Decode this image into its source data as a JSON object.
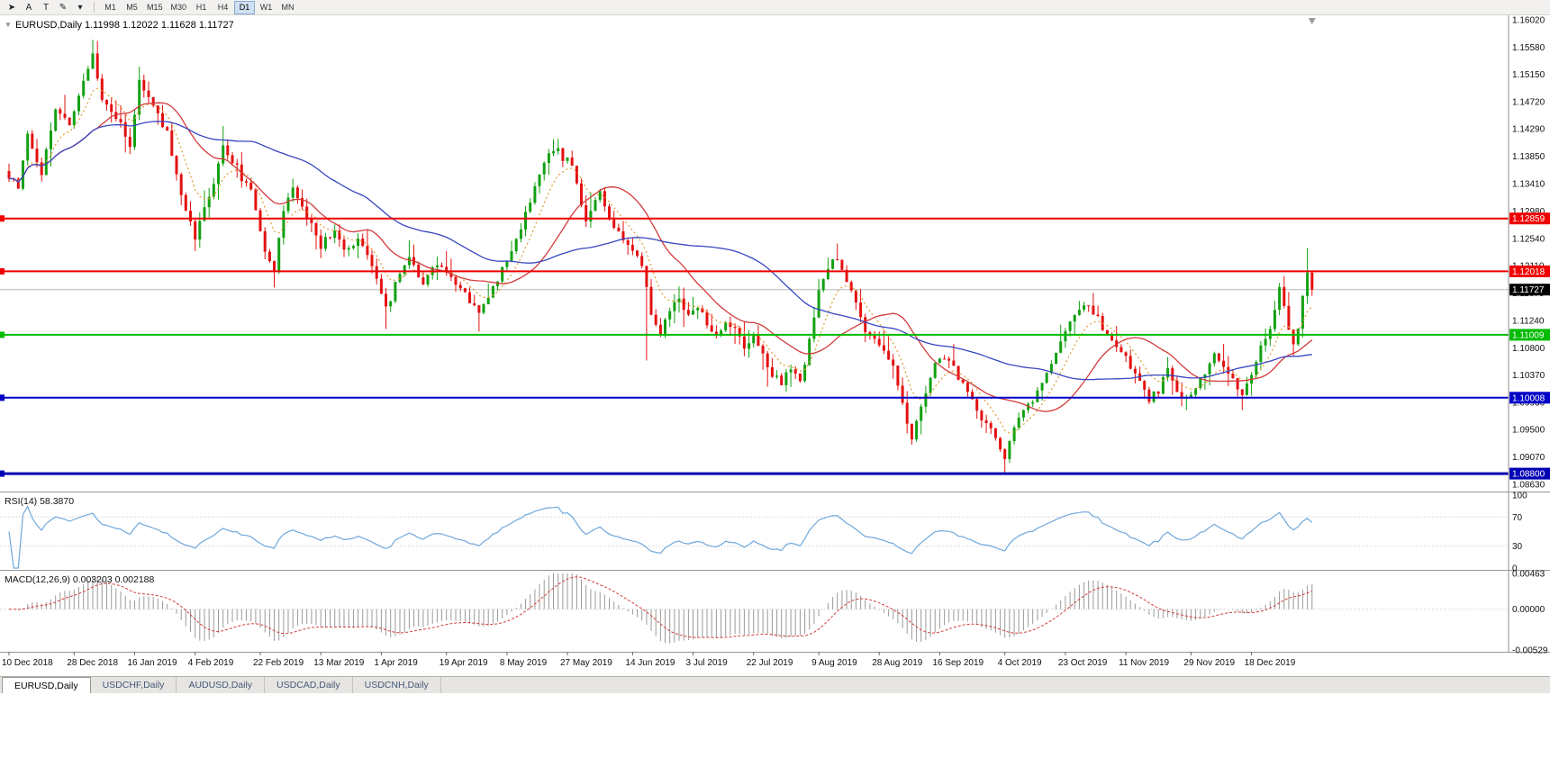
{
  "toolbar": {
    "tools": [
      {
        "id": "cursor",
        "glyph": "➤"
      },
      {
        "id": "text",
        "glyph": "A"
      },
      {
        "id": "text-label",
        "glyph": "T"
      },
      {
        "id": "draw",
        "glyph": "✎"
      },
      {
        "id": "draw-dropdown",
        "glyph": "▾"
      }
    ],
    "timeframes": [
      "M1",
      "M5",
      "M15",
      "M30",
      "H1",
      "H4",
      "D1",
      "W1",
      "MN"
    ],
    "active_timeframe": "D1"
  },
  "chart_header": {
    "symbol": "EURUSD,Daily",
    "collapse_icon": "▼",
    "open": "1.11998",
    "high": "1.12022",
    "low": "1.11628",
    "close": "1.11727"
  },
  "rsi_panel": {
    "label": "RSI(14)",
    "value": "58.3870",
    "period": 14,
    "axis_labels": [
      "100",
      "70",
      "30",
      "0"
    ],
    "levels": [
      100,
      70,
      30,
      0
    ],
    "dotted_levels": [
      70,
      30
    ]
  },
  "macd_panel": {
    "label": "MACD(12,26,9)",
    "value": "0.003203 0.002188",
    "axis_labels": [
      "0.00463",
      "0.00000",
      "-0.00529"
    ],
    "axis_values": [
      0.00463,
      0,
      -0.00529
    ]
  },
  "tabs": [
    {
      "label": "EURUSD,Daily",
      "active": true
    },
    {
      "label": "USDCHF,Daily",
      "active": false
    },
    {
      "label": "AUDUSD,Daily",
      "active": false
    },
    {
      "label": "USDCAD,Daily",
      "active": false
    },
    {
      "label": "USDCNH,Daily",
      "active": false
    }
  ],
  "chart_data": {
    "type": "candlestick",
    "symbol": "EURUSD",
    "period": "Daily",
    "bars_count": 281,
    "current_bar": {
      "open": 1.11998,
      "high": 1.12022,
      "low": 1.11628,
      "close": 1.11727
    },
    "current_price": {
      "price": 1.11727,
      "label": "1.11727"
    },
    "price_range_visible": [
      1.0863,
      1.1602
    ],
    "price_axis_labels": [
      "1.16020",
      "1.15580",
      "1.15150",
      "1.14720",
      "1.14290",
      "1.13850",
      "1.13410",
      "1.12980",
      "1.12540",
      "1.12110",
      "1.11670",
      "1.11240",
      "1.10800",
      "1.10370",
      "1.09930",
      "1.09500",
      "1.09070",
      "1.08630"
    ],
    "date_axis_labels": [
      {
        "label": "10 Dec 2018",
        "day": 0
      },
      {
        "label": "28 Dec 2018",
        "day": 14
      },
      {
        "label": "16 Jan 2019",
        "day": 27
      },
      {
        "label": "4 Feb 2019",
        "day": 40
      },
      {
        "label": "22 Feb 2019",
        "day": 54
      },
      {
        "label": "13 Mar 2019",
        "day": 67
      },
      {
        "label": "1 Apr 2019",
        "day": 80
      },
      {
        "label": "19 Apr 2019",
        "day": 94
      },
      {
        "label": "8 May 2019",
        "day": 107
      },
      {
        "label": "27 May 2019",
        "day": 120
      },
      {
        "label": "14 Jun 2019",
        "day": 134
      },
      {
        "label": "3 Jul 2019",
        "day": 147
      },
      {
        "label": "22 Jul 2019",
        "day": 160
      },
      {
        "label": "9 Aug 2019",
        "day": 174
      },
      {
        "label": "28 Aug 2019",
        "day": 187
      },
      {
        "label": "16 Sep 2019",
        "day": 200
      },
      {
        "label": "4 Oct 2019",
        "day": 214
      },
      {
        "label": "23 Oct 2019",
        "day": 227
      },
      {
        "label": "11 Nov 2019",
        "day": 240
      },
      {
        "label": "29 Nov 2019",
        "day": 254
      },
      {
        "label": "18 Dec 2019",
        "day": 267
      }
    ],
    "horizontal_lines": [
      {
        "price": 1.12859,
        "label": "1.12859",
        "color": "#f00000",
        "width": 2,
        "role": "resistance"
      },
      {
        "price": 1.12018,
        "label": "1.12018",
        "color": "#f00000",
        "width": 2,
        "role": "resistance"
      },
      {
        "price": 1.11009,
        "label": "1.11009",
        "color": "#00bb00",
        "width": 2,
        "role": "support"
      },
      {
        "price": 1.10008,
        "label": "1.10008",
        "color": "#0000c8",
        "width": 2,
        "role": "support"
      },
      {
        "price": 1.088,
        "label": "1.08800",
        "color": "#0000b4",
        "width": 3,
        "role": "support"
      }
    ],
    "moving_averages": [
      {
        "type": "EMA",
        "period": 8,
        "color": "#e2a13c",
        "dash": "2,3"
      },
      {
        "type": "SMA",
        "period": 20,
        "color": "#d23b3b",
        "dash": ""
      },
      {
        "type": "SMA",
        "period": 50,
        "color": "#3746c0",
        "dash": ""
      }
    ],
    "indicators": {
      "rsi": {
        "period": 14,
        "current": 58.387
      },
      "macd": {
        "fast": 12,
        "slow": 26,
        "signal_period": 9,
        "macd_current": 0.003203,
        "signal_current": 0.002188
      }
    },
    "colors": {
      "up": "#12a112",
      "down": "#e41010",
      "background": "#ffffff",
      "rsi_line": "#6fa8dc",
      "macd_hist": "#9a9a9a",
      "macd_signal": "#d23b3b",
      "current_price_line": "#b9b9b9",
      "axis_text": "#111111"
    },
    "close_path_anchors": [
      [
        0,
        1.1355
      ],
      [
        2,
        1.1335
      ],
      [
        4,
        1.142
      ],
      [
        7,
        1.1355
      ],
      [
        10,
        1.1465
      ],
      [
        13,
        1.1435
      ],
      [
        16,
        1.1505
      ],
      [
        18,
        1.155
      ],
      [
        20,
        1.148
      ],
      [
        23,
        1.1445
      ],
      [
        26,
        1.1405
      ],
      [
        28,
        1.151
      ],
      [
        31,
        1.1465
      ],
      [
        34,
        1.1425
      ],
      [
        37,
        1.132
      ],
      [
        40,
        1.1255
      ],
      [
        43,
        1.132
      ],
      [
        46,
        1.14
      ],
      [
        49,
        1.1365
      ],
      [
        52,
        1.133
      ],
      [
        55,
        1.1235
      ],
      [
        57,
        1.1205
      ],
      [
        59,
        1.13
      ],
      [
        61,
        1.1335
      ],
      [
        64,
        1.129
      ],
      [
        67,
        1.124
      ],
      [
        70,
        1.127
      ],
      [
        72,
        1.1235
      ],
      [
        75,
        1.1255
      ],
      [
        78,
        1.1215
      ],
      [
        81,
        1.114
      ],
      [
        83,
        1.118
      ],
      [
        86,
        1.1225
      ],
      [
        89,
        1.1185
      ],
      [
        92,
        1.1215
      ],
      [
        95,
        1.1195
      ],
      [
        98,
        1.1165
      ],
      [
        101,
        1.1135
      ],
      [
        104,
        1.1175
      ],
      [
        107,
        1.1215
      ],
      [
        110,
        1.127
      ],
      [
        113,
        1.1335
      ],
      [
        116,
        1.139
      ],
      [
        118,
        1.1395
      ],
      [
        121,
        1.1365
      ],
      [
        124,
        1.1285
      ],
      [
        127,
        1.1325
      ],
      [
        130,
        1.1275
      ],
      [
        133,
        1.1245
      ],
      [
        136,
        1.1215
      ],
      [
        138,
        1.113
      ],
      [
        140,
        1.1105
      ],
      [
        142,
        1.114
      ],
      [
        144,
        1.116
      ],
      [
        146,
        1.113
      ],
      [
        148,
        1.1145
      ],
      [
        150,
        1.112
      ],
      [
        152,
        1.11
      ],
      [
        154,
        1.1125
      ],
      [
        156,
        1.1105
      ],
      [
        158,
        1.108
      ],
      [
        160,
        1.11
      ],
      [
        162,
        1.107
      ],
      [
        164,
        1.104
      ],
      [
        166,
        1.1025
      ],
      [
        168,
        1.1045
      ],
      [
        170,
        1.103
      ],
      [
        172,
        1.109
      ],
      [
        174,
        1.117
      ],
      [
        176,
        1.121
      ],
      [
        178,
        1.1225
      ],
      [
        180,
        1.119
      ],
      [
        182,
        1.115
      ],
      [
        184,
        1.111
      ],
      [
        186,
        1.1095
      ],
      [
        188,
        1.1075
      ],
      [
        190,
        1.105
      ],
      [
        192,
        1.099
      ],
      [
        194,
        1.0935
      ],
      [
        196,
        1.0985
      ],
      [
        198,
        1.1035
      ],
      [
        200,
        1.1065
      ],
      [
        202,
        1.106
      ],
      [
        205,
        1.102
      ],
      [
        208,
        1.098
      ],
      [
        211,
        1.0945
      ],
      [
        214,
        1.0905
      ],
      [
        216,
        1.096
      ],
      [
        218,
        1.0985
      ],
      [
        220,
        1.1
      ],
      [
        223,
        1.104
      ],
      [
        226,
        1.109
      ],
      [
        229,
        1.113
      ],
      [
        231,
        1.115
      ],
      [
        234,
        1.113
      ],
      [
        237,
        1.109
      ],
      [
        240,
        1.106
      ],
      [
        243,
        1.103
      ],
      [
        245,
        1.1
      ],
      [
        247,
        1.101
      ],
      [
        249,
        1.105
      ],
      [
        251,
        1.101
      ],
      [
        253,
        1.0995
      ],
      [
        255,
        1.102
      ],
      [
        257,
        1.104
      ],
      [
        259,
        1.107
      ],
      [
        261,
        1.105
      ],
      [
        263,
        1.1025
      ],
      [
        265,
        1.1005
      ],
      [
        267,
        1.104
      ],
      [
        269,
        1.108
      ],
      [
        271,
        1.111
      ],
      [
        272,
        1.114
      ],
      [
        273,
        1.117
      ],
      [
        274,
        1.1145
      ],
      [
        275,
        1.111
      ],
      [
        276,
        1.1085
      ],
      [
        277,
        1.111
      ],
      [
        278,
        1.116
      ],
      [
        279,
        1.12
      ],
      [
        280,
        1.1173
      ]
    ],
    "wick_extremes": [
      {
        "day": 18,
        "high": 1.157
      },
      {
        "day": 40,
        "low": 1.1234
      },
      {
        "day": 57,
        "low": 1.1176
      },
      {
        "day": 81,
        "low": 1.111
      },
      {
        "day": 101,
        "low": 1.1106
      },
      {
        "day": 117,
        "high": 1.1412
      },
      {
        "day": 137,
        "low": 1.106
      },
      {
        "day": 170,
        "low": 1.1026
      },
      {
        "day": 194,
        "low": 1.0926
      },
      {
        "day": 214,
        "low": 1.0879
      },
      {
        "day": 253,
        "low": 1.0981
      },
      {
        "day": 265,
        "low": 1.0981
      },
      {
        "day": 279,
        "high": 1.1239
      }
    ]
  }
}
